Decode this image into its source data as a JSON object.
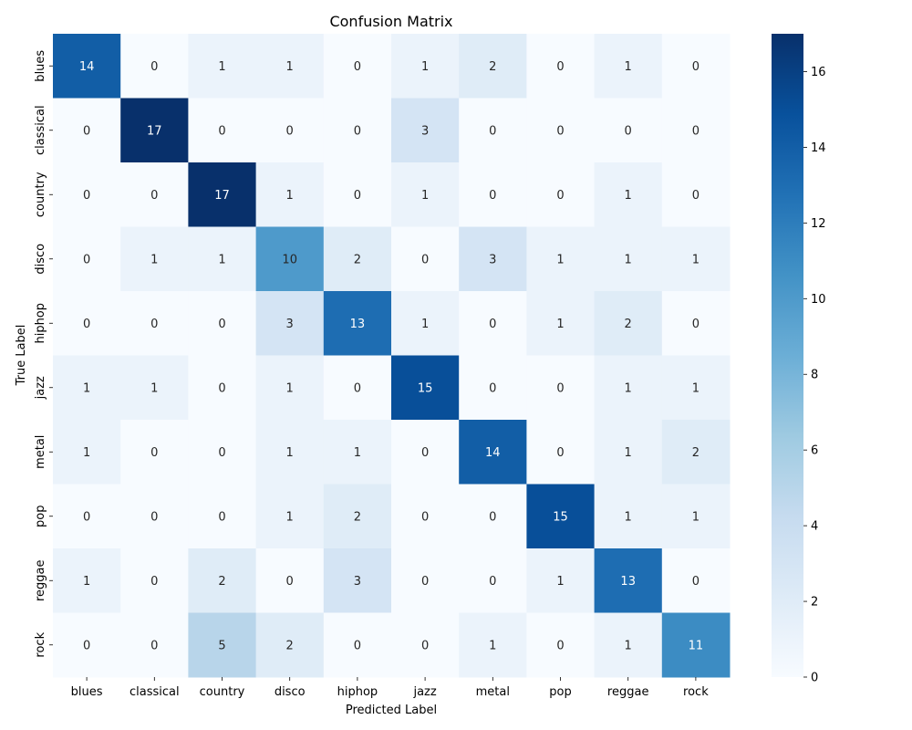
{
  "chart_data": {
    "type": "heatmap",
    "title": "Confusion Matrix",
    "xlabel": "Predicted Label",
    "ylabel": "True Label",
    "x_categories": [
      "blues",
      "classical",
      "country",
      "disco",
      "hiphop",
      "jazz",
      "metal",
      "pop",
      "reggae",
      "rock"
    ],
    "y_categories": [
      "blues",
      "classical",
      "country",
      "disco",
      "hiphop",
      "jazz",
      "metal",
      "pop",
      "reggae",
      "rock"
    ],
    "values": [
      [
        14,
        0,
        1,
        1,
        0,
        1,
        2,
        0,
        1,
        0
      ],
      [
        0,
        17,
        0,
        0,
        0,
        3,
        0,
        0,
        0,
        0
      ],
      [
        0,
        0,
        17,
        1,
        0,
        1,
        0,
        0,
        1,
        0
      ],
      [
        0,
        1,
        1,
        10,
        2,
        0,
        3,
        1,
        1,
        1
      ],
      [
        0,
        0,
        0,
        3,
        13,
        1,
        0,
        1,
        2,
        0
      ],
      [
        1,
        1,
        0,
        1,
        0,
        15,
        0,
        0,
        1,
        1
      ],
      [
        1,
        0,
        0,
        1,
        1,
        0,
        14,
        0,
        1,
        2
      ],
      [
        0,
        0,
        0,
        1,
        2,
        0,
        0,
        15,
        1,
        1
      ],
      [
        1,
        0,
        2,
        0,
        3,
        0,
        0,
        1,
        13,
        0
      ],
      [
        0,
        0,
        5,
        2,
        0,
        0,
        1,
        0,
        1,
        11
      ]
    ],
    "colormap": "Blues",
    "vmin": 0,
    "vmax": 17,
    "colorbar_ticks": [
      0,
      2,
      4,
      6,
      8,
      10,
      12,
      14,
      16
    ],
    "colorbar_tick_labels": [
      "0",
      "2",
      "4",
      "6",
      "8",
      "10",
      "12",
      "14",
      "16"
    ],
    "annotated": true
  }
}
